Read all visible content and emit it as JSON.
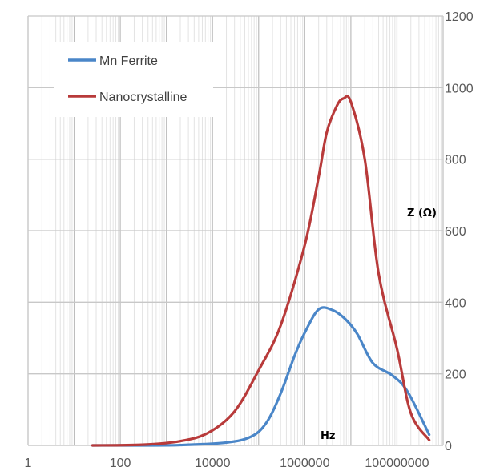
{
  "chart_data": {
    "type": "line",
    "title": "",
    "xlabel": "Hz",
    "ylabel": "Z (Ω)",
    "x_scale": "log",
    "xlim": [
      1,
      1000000000
    ],
    "ylim": [
      0,
      1200
    ],
    "x_ticks": [
      1,
      100,
      10000,
      1000000,
      100000000
    ],
    "x_tick_labels": [
      "1",
      "100",
      "10000",
      "1000000",
      "100000000"
    ],
    "y_ticks": [
      0,
      200,
      400,
      600,
      800,
      1000,
      1200
    ],
    "y_tick_labels": [
      "0",
      "200",
      "400",
      "600",
      "800",
      "1000",
      "1200"
    ],
    "grid": true,
    "legend_position": "top-left",
    "series": [
      {
        "name": "Mn Ferrite",
        "color": "#4a86c8",
        "x": [
          25,
          300,
          2000,
          20000,
          70000,
          150000,
          300000,
          600000,
          1000000,
          2000000,
          4000000,
          8000000,
          14000000,
          30000000,
          80000000,
          170000000,
          500000000
        ],
        "y": [
          0,
          0,
          1,
          8,
          25,
          65,
          145,
          250,
          315,
          380,
          378,
          350,
          310,
          230,
          195,
          150,
          30
        ]
      },
      {
        "name": "Nanocrystalline",
        "color": "#b83a3a",
        "x": [
          25,
          300,
          2000,
          8000,
          30000,
          100000,
          300000,
          1000000,
          2000000,
          3000000,
          5000000,
          7000000,
          10000000,
          20000000,
          40000000,
          100000000,
          200000000,
          500000000
        ],
        "y": [
          0,
          2,
          12,
          35,
          95,
          210,
          335,
          560,
          750,
          875,
          950,
          970,
          960,
          800,
          480,
          270,
          90,
          15
        ]
      }
    ]
  }
}
